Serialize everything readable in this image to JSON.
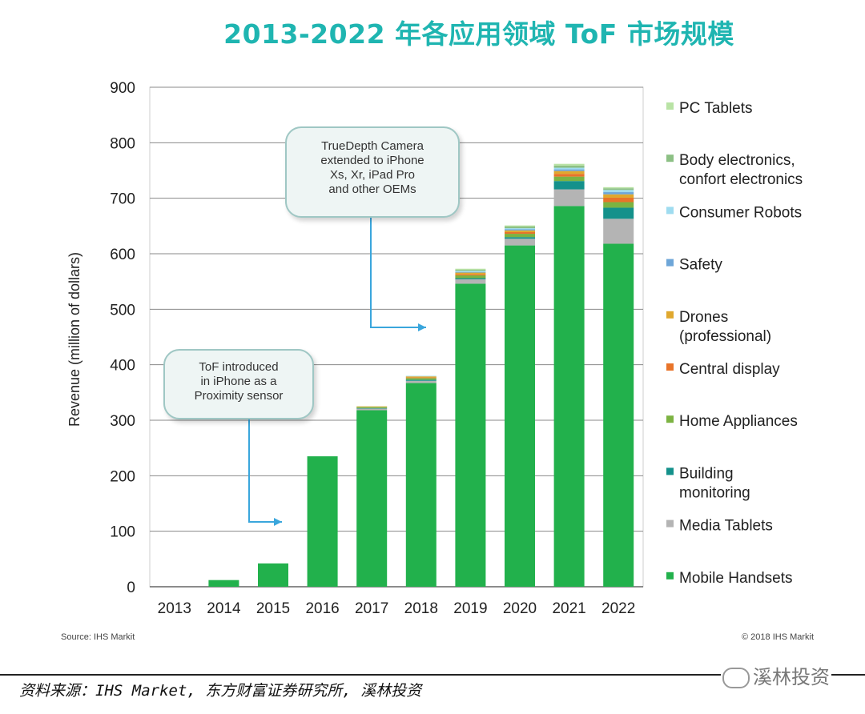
{
  "title": "2013-2022 年各应用领域 ToF 市场规模",
  "callouts": {
    "truedepth": "TrueDepth Camera\nextended to iPhone\nXs, Xr, iPad Pro\nand other OEMs",
    "tof": "ToF introduced\nin iPhone as a\nProximity sensor"
  },
  "source_left": "Source: IHS Markit",
  "source_right": "© 2018 IHS Markit",
  "footer": "资料来源：IHS Market, 东方财富证券研究所, 溪林投资",
  "brand": "溪林投资",
  "chart_data": {
    "type": "bar",
    "stacked": true,
    "ylabel": "Revenue (million of dollars)",
    "xlabel": "",
    "ylim": [
      0,
      900
    ],
    "yticks": [
      0,
      100,
      200,
      300,
      400,
      500,
      600,
      700,
      800,
      900
    ],
    "grid": true,
    "legend_position": "right",
    "categories": [
      "2013",
      "2014",
      "2015",
      "2016",
      "2017",
      "2018",
      "2019",
      "2020",
      "2021",
      "2022"
    ],
    "series": [
      {
        "name": "Mobile Handsets",
        "color": "#22b14c",
        "values": [
          0,
          12,
          42,
          235,
          318,
          367,
          546,
          615,
          686,
          618
        ]
      },
      {
        "name": "Media Tablets",
        "color": "#b4b4b4",
        "values": [
          0,
          0,
          0,
          0,
          3,
          4,
          8,
          12,
          30,
          45
        ]
      },
      {
        "name": "Building monitoring",
        "color": "#14918b",
        "values": [
          0,
          0,
          0,
          0,
          1,
          2,
          2,
          3,
          15,
          20
        ]
      },
      {
        "name": "Home Appliances",
        "color": "#7cb342",
        "values": [
          0,
          0,
          0,
          0,
          2,
          3,
          5,
          6,
          8,
          10
        ]
      },
      {
        "name": "Central display",
        "color": "#e8742a",
        "values": [
          0,
          0,
          0,
          0,
          0,
          1,
          2,
          3,
          5,
          8
        ]
      },
      {
        "name": "Drones (professional)",
        "color": "#e0a82e",
        "values": [
          0,
          0,
          0,
          0,
          1,
          2,
          3,
          3,
          5,
          6
        ]
      },
      {
        "name": "Safety",
        "color": "#6ea6d8",
        "values": [
          0,
          0,
          0,
          0,
          0,
          0,
          1,
          2,
          3,
          4
        ]
      },
      {
        "name": "Consumer Robots",
        "color": "#9fdcf0",
        "values": [
          0,
          0,
          0,
          0,
          0,
          1,
          2,
          2,
          3,
          4
        ]
      },
      {
        "name": "Body electronics, confort electronics",
        "color": "#8cc084",
        "values": [
          0,
          0,
          0,
          0,
          0,
          0,
          2,
          3,
          4,
          3
        ]
      },
      {
        "name": "PC Tablets",
        "color": "#b9e3a5",
        "values": [
          0,
          0,
          0,
          0,
          0,
          0,
          2,
          2,
          3,
          2
        ]
      }
    ],
    "legend_order": [
      {
        "label": "PC Tablets",
        "color": "#b9e3a5"
      },
      {
        "label": "Body electronics,\nconfort electronics",
        "color": "#8cc084"
      },
      {
        "label": "Consumer Robots",
        "color": "#9fdcf0"
      },
      {
        "label": "Safety",
        "color": "#6ea6d8"
      },
      {
        "label": "Drones\n(professional)",
        "color": "#e0a82e"
      },
      {
        "label": "Central display",
        "color": "#e8742a"
      },
      {
        "label": "Home Appliances",
        "color": "#7cb342"
      },
      {
        "label": "Building\nmonitoring",
        "color": "#14918b"
      },
      {
        "label": "Media Tablets",
        "color": "#b4b4b4"
      },
      {
        "label": "Mobile Handsets",
        "color": "#22b14c"
      }
    ]
  }
}
